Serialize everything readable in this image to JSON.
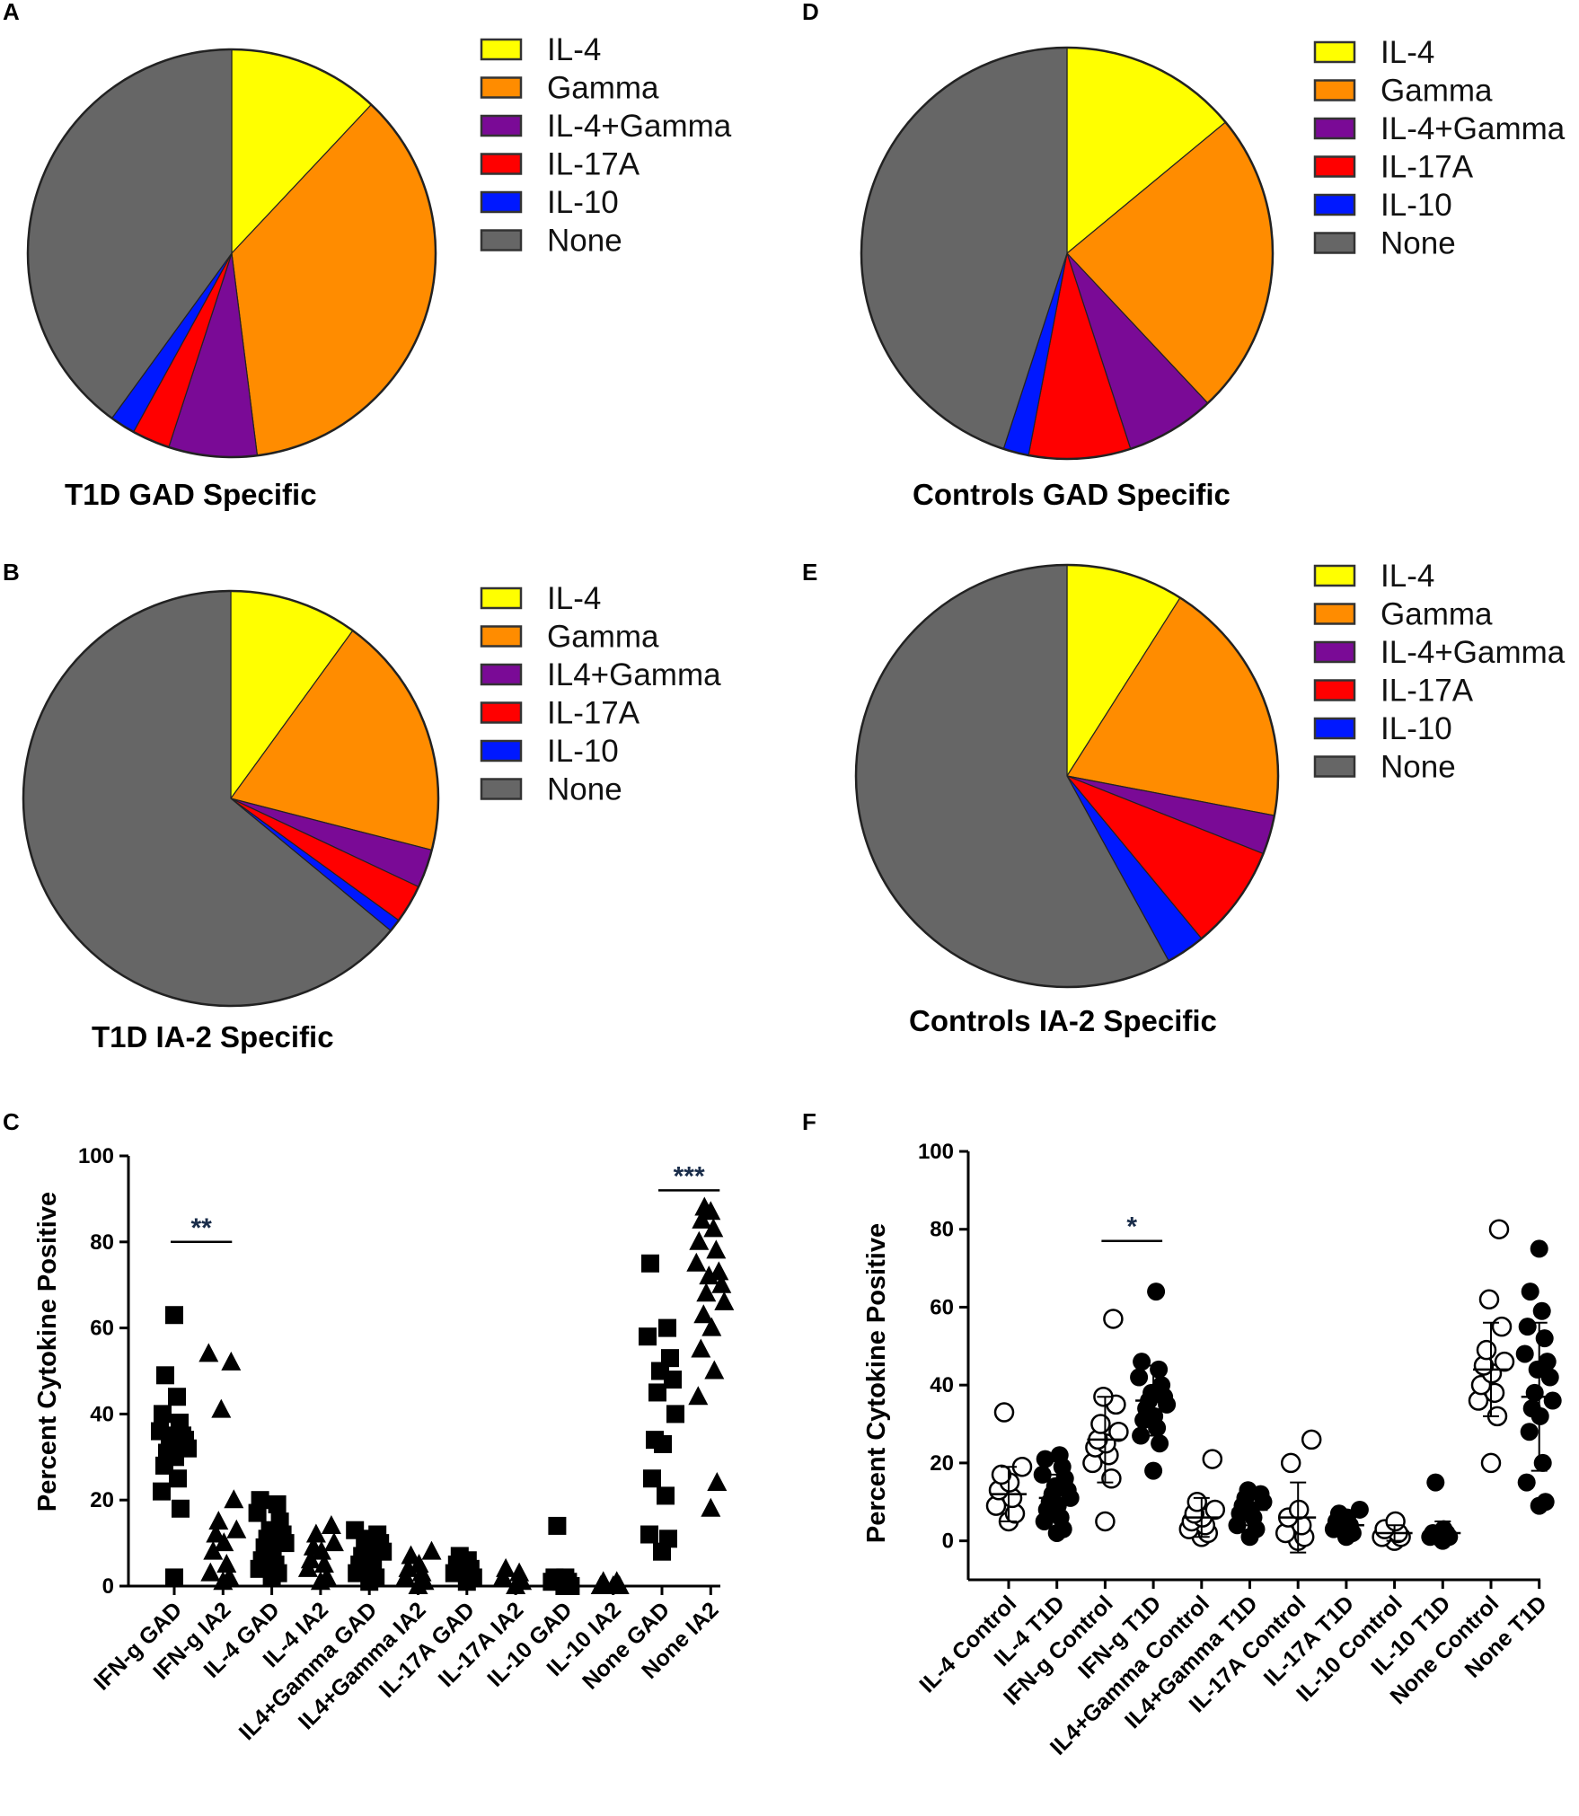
{
  "figure": {
    "panel_labels": [
      "A",
      "B",
      "C",
      "D",
      "E",
      "F"
    ]
  },
  "chart_data": [
    {
      "panel": "A",
      "type": "pie",
      "title": "T1D  GAD Specific",
      "labels": [
        "IL-4",
        "Gamma",
        "IL-4+Gamma",
        "IL-17A",
        "IL-10",
        "None"
      ],
      "values": [
        12,
        36,
        7,
        3,
        2,
        40
      ],
      "colors": [
        "#ffff00",
        "#ff8c00",
        "#7a0a96",
        "#ff0000",
        "#0018ff",
        "#666666"
      ]
    },
    {
      "panel": "B",
      "type": "pie",
      "title": "T1D IA-2 Specific",
      "labels": [
        "IL-4",
        "Gamma",
        "IL4+Gamma",
        "IL-17A",
        "IL-10",
        "None"
      ],
      "values": [
        10,
        19,
        3,
        3,
        1,
        64
      ],
      "colors": [
        "#ffff00",
        "#ff8c00",
        "#7a0a96",
        "#ff0000",
        "#0018ff",
        "#666666"
      ]
    },
    {
      "panel": "C",
      "type": "scatter",
      "ylabel": "Percent Cytokine Positive",
      "ylim": [
        0,
        100
      ],
      "yticks": [
        0,
        20,
        40,
        60,
        80,
        100
      ],
      "categories": [
        "IFN-g GAD",
        "IFN-g IA2",
        "IL-4 GAD",
        "IL-4 IA2",
        "IL4+Gamma GAD",
        "IL4+Gamma IA2",
        "IL-17A GAD",
        "IL-17A IA2",
        "IL-10 GAD",
        "IL-10 IA2",
        "None GAD",
        "None IA2"
      ],
      "markers": [
        "square",
        "triangle",
        "square",
        "triangle",
        "square",
        "triangle",
        "square",
        "triangle",
        "square",
        "triangle",
        "square",
        "triangle"
      ],
      "points": [
        [
          2,
          18,
          22,
          25,
          28,
          30,
          31,
          32,
          33,
          34,
          35,
          35,
          36,
          38,
          40,
          44,
          49,
          63
        ],
        [
          1,
          2,
          3,
          5,
          8,
          10,
          12,
          13,
          15,
          20,
          41,
          52,
          54
        ],
        [
          2,
          3,
          4,
          5,
          6,
          8,
          9,
          10,
          11,
          12,
          13,
          15,
          17,
          19,
          20
        ],
        [
          1,
          2,
          4,
          5,
          6,
          8,
          9,
          10,
          12,
          14
        ],
        [
          1,
          2,
          3,
          4,
          5,
          6,
          7,
          8,
          9,
          10,
          11,
          12,
          13
        ],
        [
          0,
          1,
          2,
          3,
          4,
          5,
          7,
          8
        ],
        [
          1,
          2,
          3,
          4,
          5,
          6,
          7
        ],
        [
          0,
          1,
          2,
          3,
          4
        ],
        [
          0,
          0,
          1,
          1,
          2,
          2,
          14
        ],
        [
          0,
          0,
          0,
          1,
          1
        ],
        [
          8,
          11,
          12,
          21,
          25,
          33,
          34,
          40,
          45,
          48,
          50,
          53,
          58,
          60,
          75
        ],
        [
          18,
          24,
          44,
          50,
          55,
          60,
          63,
          66,
          68,
          70,
          72,
          73,
          75,
          78,
          80,
          83,
          85,
          87,
          88
        ]
      ],
      "significance": [
        {
          "from": 0,
          "to": 1,
          "label": "**",
          "y": 80
        },
        {
          "from": 10,
          "to": 11,
          "label": "***",
          "y": 92
        }
      ]
    },
    {
      "panel": "D",
      "type": "pie",
      "title": "Controls GAD Specific",
      "labels": [
        "IL-4",
        "Gamma",
        "IL-4+Gamma",
        "IL-17A",
        "IL-10",
        "None"
      ],
      "values": [
        14,
        24,
        7,
        8,
        2,
        45
      ],
      "colors": [
        "#ffff00",
        "#ff8c00",
        "#7a0a96",
        "#ff0000",
        "#0018ff",
        "#666666"
      ]
    },
    {
      "panel": "E",
      "type": "pie",
      "title": "Controls IA-2  Specific",
      "labels": [
        "IL-4",
        "Gamma",
        "IL-4+Gamma",
        "IL-17A",
        "IL-10",
        "None"
      ],
      "values": [
        9,
        19,
        3,
        8,
        3,
        58
      ],
      "colors": [
        "#ffff00",
        "#ff8c00",
        "#7a0a96",
        "#ff0000",
        "#0018ff",
        "#666666"
      ]
    },
    {
      "panel": "F",
      "type": "scatter",
      "ylabel": "Percent Cytokine Positive",
      "ylim": [
        -10,
        100
      ],
      "yticks": [
        0,
        20,
        40,
        60,
        80,
        100
      ],
      "categories": [
        "IL-4 Control",
        "IL-4 T1D",
        "IFN-g Control",
        "IFN-g T1D",
        "IL4+Gamma Control",
        "IL4+Gamma T1D",
        "IL-17A Control",
        "IL-17A T1D",
        "IL-10 Control",
        "IL-10 T1D",
        "None Control",
        "None T1D"
      ],
      "markers": [
        "open",
        "filled",
        "open",
        "filled",
        "open",
        "filled",
        "open",
        "filled",
        "open",
        "filled",
        "open",
        "filled"
      ],
      "points": [
        [
          5,
          7,
          9,
          11,
          13,
          15,
          17,
          19,
          33
        ],
        [
          2,
          3,
          5,
          6,
          8,
          9,
          10,
          11,
          12,
          13,
          14,
          16,
          17,
          19,
          21,
          22
        ],
        [
          5,
          16,
          20,
          22,
          24,
          25,
          26,
          28,
          30,
          35,
          37,
          57
        ],
        [
          18,
          25,
          27,
          29,
          31,
          32,
          34,
          35,
          36,
          37,
          38,
          40,
          42,
          44,
          46,
          64
        ],
        [
          1,
          2,
          3,
          4,
          5,
          6,
          7,
          8,
          10,
          21
        ],
        [
          1,
          3,
          4,
          6,
          7,
          8,
          9,
          10,
          11,
          12,
          13
        ],
        [
          0,
          1,
          2,
          4,
          6,
          8,
          20,
          26
        ],
        [
          1,
          2,
          3,
          4,
          5,
          6,
          7,
          8
        ],
        [
          0,
          1,
          1,
          2,
          3,
          5
        ],
        [
          0,
          1,
          1,
          2,
          2,
          3,
          15
        ],
        [
          20,
          32,
          36,
          38,
          40,
          43,
          45,
          46,
          49,
          55,
          62,
          80
        ],
        [
          9,
          10,
          15,
          20,
          28,
          32,
          34,
          36,
          38,
          42,
          44,
          46,
          48,
          52,
          55,
          59,
          64,
          75
        ]
      ],
      "summary": [
        {
          "mean": 12,
          "sd": 7
        },
        {
          "mean": 11,
          "sd": 6
        },
        {
          "mean": 26,
          "sd": 11
        },
        {
          "mean": 36,
          "sd": 9
        },
        {
          "mean": 6,
          "sd": 5
        },
        {
          "mean": 8,
          "sd": 4
        },
        {
          "mean": 6,
          "sd": 9
        },
        {
          "mean": 4,
          "sd": 2
        },
        {
          "mean": 2,
          "sd": 2
        },
        {
          "mean": 2,
          "sd": 3
        },
        {
          "mean": 44,
          "sd": 12
        },
        {
          "mean": 37,
          "sd": 19
        }
      ],
      "significance": [
        {
          "from": 2,
          "to": 3,
          "label": "*",
          "y": 77
        }
      ]
    }
  ]
}
